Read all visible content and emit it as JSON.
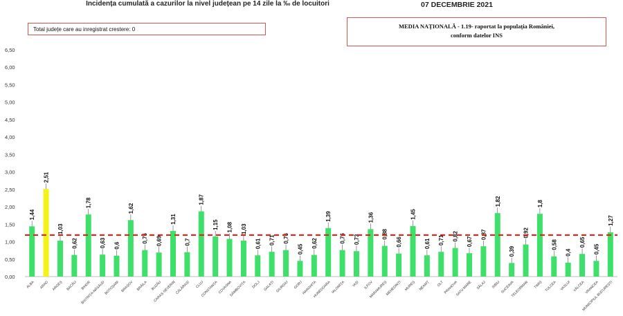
{
  "header": {
    "title": "Incidența cumulată a cazurilor la nivel județean pe 14 zile la ‰ de locuitori",
    "date": "07 DECEMBRIE 2021"
  },
  "notes": {
    "growth": "Total județe care au inregistrat crestere: 0",
    "national_line1": "MEDIA NAȚIONALĂ - 1.19-  raportat la populația României,",
    "national_line2": "conform datelor INS"
  },
  "colors": {
    "bar": "#3ee06a",
    "highlight": "#f5f21a",
    "reference": "#e2231a"
  },
  "chart_data": {
    "type": "bar",
    "title": "Incidența cumulată a cazurilor la nivel județean pe 14 zile la ‰ de locuitori",
    "xlabel": "",
    "ylabel": "",
    "ylim": [
      0,
      6.5
    ],
    "yticks": [
      "0,00",
      "0,50",
      "1,00",
      "1,50",
      "2,00",
      "2,50",
      "3,00",
      "3,50",
      "4,00",
      "4,50",
      "5,00",
      "5,50",
      "6,00",
      "6,50"
    ],
    "grid": false,
    "reference_line": 1.19,
    "highlight_index": 1,
    "categories": [
      "ALBA",
      "ARAD",
      "ARGEȘ",
      "BACĂU",
      "BIHOR",
      "BISTRIȚA-NĂSĂUD",
      "BOTOȘANI",
      "BRAȘOV",
      "BRĂILA",
      "BUZĂU",
      "CARAȘ-SEVERIN",
      "CĂLĂRAȘI",
      "CLUJ",
      "CONSTANȚA",
      "COVASNA",
      "DÂMBOVIȚA",
      "DOLJ",
      "GALAȚI",
      "GIURGIU",
      "GORJ",
      "HARGHITA",
      "HUNEDOARA",
      "IALOMIȚA",
      "IAȘI",
      "ILFOV",
      "MARAMUREȘ",
      "MEHEDINȚI",
      "MUREȘ",
      "NEAMȚ",
      "OLT",
      "PRAHOVA",
      "SATU MARE",
      "SĂLAJ",
      "SIBIU",
      "SUCEAVA",
      "TELEORMAN",
      "TIMIȘ",
      "TULCEA",
      "VASLUI",
      "VÂLCEA",
      "VRANCEA",
      "MUNICIPIUL BUCUREȘTI"
    ],
    "values": [
      1.44,
      2.51,
      1.03,
      0.62,
      1.78,
      0.63,
      0.6,
      1.62,
      0.76,
      0.69,
      1.31,
      0.7,
      1.87,
      1.15,
      1.08,
      1.03,
      0.61,
      0.71,
      0.76,
      0.45,
      0.62,
      1.39,
      0.76,
      0.73,
      1.36,
      0.88,
      0.66,
      1.45,
      0.61,
      0.71,
      0.82,
      0.67,
      0.87,
      1.82,
      0.39,
      0.92,
      1.8,
      0.58,
      0.4,
      0.65,
      0.45,
      1.27
    ],
    "value_labels": [
      "1,44",
      "2,51",
      "1,03",
      "0,62",
      "1,78",
      "0,63",
      "0,6",
      "1,62",
      "0,76",
      "0,69",
      "1,31",
      "0,7",
      "1,87",
      "1,15",
      "1,08",
      "1,03",
      "0,61",
      "0,71",
      "0,76",
      "0,45",
      "0,62",
      "1,39",
      "0,76",
      "0,73",
      "1,36",
      "0,88",
      "0,66",
      "1,45",
      "0,61",
      "0,71",
      "0,82",
      "0,67",
      "0,87",
      "1,82",
      "0,39",
      "0,92",
      "1,8",
      "0,58",
      "0,4",
      "0,65",
      "0,45",
      "1,27"
    ]
  }
}
